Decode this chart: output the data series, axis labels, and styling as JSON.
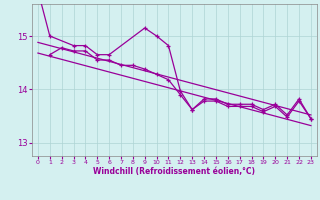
{
  "xlabel": "Windchill (Refroidissement éolien,°C)",
  "bg_color": "#d4f0f0",
  "grid_color": "#aed4d4",
  "line_color": "#990099",
  "series_a_x": [
    0,
    1,
    3,
    4,
    5,
    6,
    9,
    10,
    11,
    12,
    13,
    14,
    15,
    16,
    17,
    18,
    19,
    20,
    21,
    22,
    23
  ],
  "series_a_y": [
    15.85,
    15.0,
    14.82,
    14.82,
    14.65,
    14.65,
    15.15,
    15.0,
    14.82,
    13.97,
    13.62,
    13.82,
    13.82,
    13.72,
    13.72,
    13.72,
    13.62,
    13.72,
    13.52,
    13.82,
    13.45
  ],
  "series_b_x": [
    1,
    2,
    3,
    4,
    5,
    6,
    7,
    8,
    9,
    10,
    11,
    12,
    13,
    14,
    15,
    16,
    17,
    18,
    19,
    20,
    21,
    22,
    23
  ],
  "series_b_y": [
    14.65,
    14.78,
    14.72,
    14.72,
    14.55,
    14.55,
    14.45,
    14.45,
    14.38,
    14.28,
    14.18,
    13.9,
    13.62,
    13.78,
    13.78,
    13.68,
    13.68,
    13.68,
    13.58,
    13.68,
    13.48,
    13.78,
    13.45
  ],
  "trend1_x": [
    0,
    23
  ],
  "trend1_y": [
    14.88,
    13.52
  ],
  "trend2_x": [
    0,
    23
  ],
  "trend2_y": [
    14.68,
    13.32
  ],
  "xlim": [
    -0.5,
    23.5
  ],
  "ylim": [
    12.75,
    15.6
  ],
  "yticks": [
    13,
    14,
    15
  ],
  "xticks": [
    0,
    1,
    2,
    3,
    4,
    5,
    6,
    7,
    8,
    9,
    10,
    11,
    12,
    13,
    14,
    15,
    16,
    17,
    18,
    19,
    20,
    21,
    22,
    23
  ]
}
